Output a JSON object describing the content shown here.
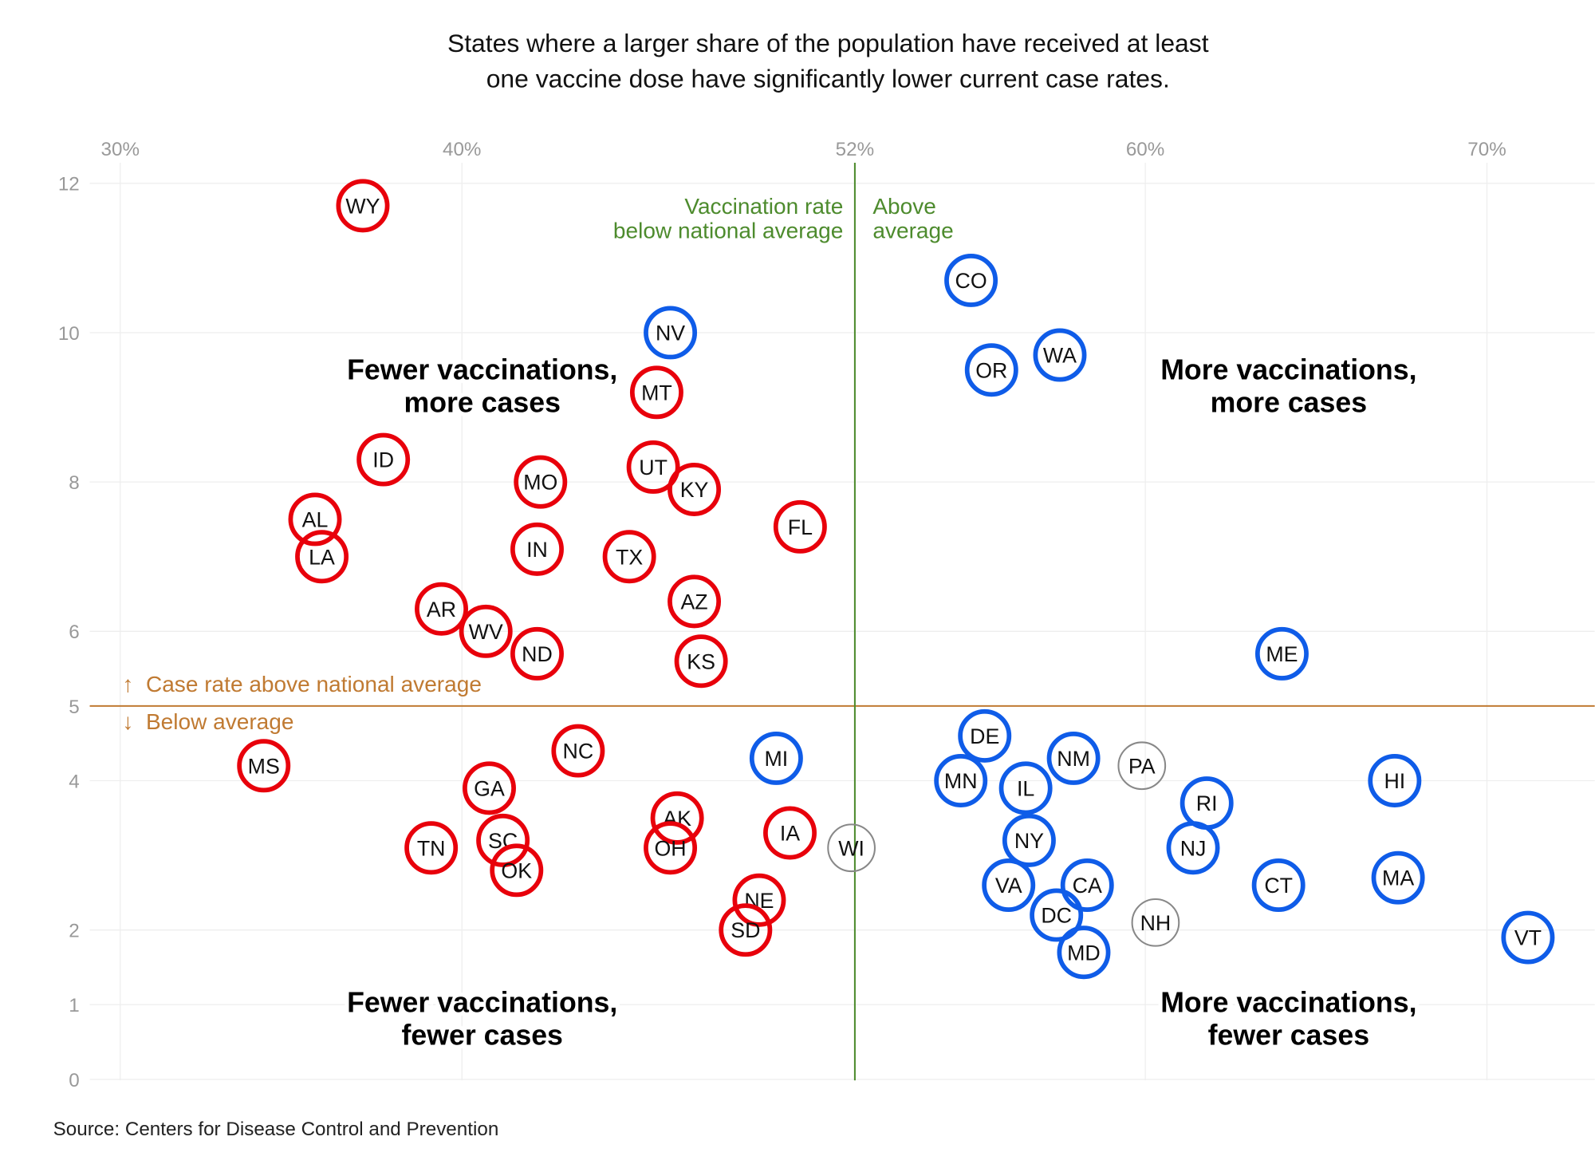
{
  "chart_data": {
    "type": "scatter",
    "title": "States where a larger share of the population have received at least one vaccine dose have significantly lower current case rates.",
    "title_lines": [
      "States where a larger share of the population have received at least",
      "one vaccine dose have significantly lower current case rates."
    ],
    "x_ticks": [
      {
        "value": 30,
        "label": "30%"
      },
      {
        "value": 40,
        "label": "40%"
      },
      {
        "value": 51.5,
        "label": "52%"
      },
      {
        "value": 60,
        "label": "60%"
      },
      {
        "value": 70,
        "label": "70%"
      }
    ],
    "y_ticks": [
      {
        "value": 0,
        "label": "0"
      },
      {
        "value": 1,
        "label": "1"
      },
      {
        "value": 2,
        "label": "2"
      },
      {
        "value": 4,
        "label": "4"
      },
      {
        "value": 5,
        "label": "5"
      },
      {
        "value": 6,
        "label": "6"
      },
      {
        "value": 8,
        "label": "8"
      },
      {
        "value": 10,
        "label": "10"
      },
      {
        "value": 12,
        "label": "12"
      }
    ],
    "xlim": [
      28,
      73
    ],
    "ylim": [
      0,
      12.5
    ],
    "grid": true,
    "reference_lines": {
      "vaccination_avg": 51.5,
      "case_rate_avg": 5
    },
    "annotations": {
      "vacc_below": [
        "Vaccination rate",
        "below national average"
      ],
      "vacc_above": [
        "Above",
        "average"
      ],
      "case_above": "↑  Case rate above national average",
      "case_below": "↓  Below average"
    },
    "quadrant_labels": {
      "top_left": [
        "Fewer vaccinations,",
        "more cases"
      ],
      "top_right": [
        "More vaccinations,",
        "more cases"
      ],
      "bottom_left": [
        "Fewer vaccinations,",
        "fewer cases"
      ],
      "bottom_right": [
        "More vaccinations,",
        "fewer cases"
      ]
    },
    "colors": {
      "low_vaccination": "#e8000b",
      "high_vaccination": "#0f5ce8",
      "near_average": "#888888",
      "vaccination_line": "#4d8b2d",
      "case_line": "#c07a32"
    },
    "points": [
      {
        "state": "WY",
        "x": 37.1,
        "y": 11.7,
        "group": "low"
      },
      {
        "state": "ID",
        "x": 37.7,
        "y": 8.3,
        "group": "low"
      },
      {
        "state": "AL",
        "x": 35.7,
        "y": 7.5,
        "group": "low"
      },
      {
        "state": "LA",
        "x": 35.9,
        "y": 7.0,
        "group": "low"
      },
      {
        "state": "AR",
        "x": 39.4,
        "y": 6.3,
        "group": "low"
      },
      {
        "state": "WV",
        "x": 40.7,
        "y": 6.0,
        "group": "low"
      },
      {
        "state": "ND",
        "x": 42.2,
        "y": 5.7,
        "group": "low"
      },
      {
        "state": "IN",
        "x": 42.2,
        "y": 7.1,
        "group": "low"
      },
      {
        "state": "MO",
        "x": 42.3,
        "y": 8.0,
        "group": "low"
      },
      {
        "state": "TX",
        "x": 44.9,
        "y": 7.0,
        "group": "low"
      },
      {
        "state": "UT",
        "x": 45.6,
        "y": 8.2,
        "group": "low"
      },
      {
        "state": "KY",
        "x": 46.8,
        "y": 7.9,
        "group": "low"
      },
      {
        "state": "MT",
        "x": 45.7,
        "y": 9.2,
        "group": "low"
      },
      {
        "state": "NV",
        "x": 46.1,
        "y": 10.0,
        "group": "high"
      },
      {
        "state": "AZ",
        "x": 46.8,
        "y": 6.4,
        "group": "low"
      },
      {
        "state": "KS",
        "x": 47.0,
        "y": 5.6,
        "group": "low"
      },
      {
        "state": "FL",
        "x": 49.9,
        "y": 7.4,
        "group": "low"
      },
      {
        "state": "CO",
        "x": 54.9,
        "y": 10.7,
        "group": "high"
      },
      {
        "state": "OR",
        "x": 55.5,
        "y": 9.5,
        "group": "high"
      },
      {
        "state": "WA",
        "x": 57.5,
        "y": 9.7,
        "group": "high"
      },
      {
        "state": "ME",
        "x": 64.0,
        "y": 5.7,
        "group": "high"
      },
      {
        "state": "MS",
        "x": 34.2,
        "y": 4.2,
        "group": "low"
      },
      {
        "state": "GA",
        "x": 40.8,
        "y": 3.9,
        "group": "low"
      },
      {
        "state": "NC",
        "x": 43.4,
        "y": 4.4,
        "group": "low"
      },
      {
        "state": "MI",
        "x": 49.2,
        "y": 4.3,
        "group": "high"
      },
      {
        "state": "TN",
        "x": 39.1,
        "y": 3.1,
        "group": "low"
      },
      {
        "state": "SC",
        "x": 41.2,
        "y": 3.2,
        "group": "low"
      },
      {
        "state": "OK",
        "x": 41.6,
        "y": 2.8,
        "group": "low"
      },
      {
        "state": "AK",
        "x": 46.3,
        "y": 3.5,
        "group": "low"
      },
      {
        "state": "OH",
        "x": 46.1,
        "y": 3.1,
        "group": "low"
      },
      {
        "state": "IA",
        "x": 49.6,
        "y": 3.3,
        "group": "low"
      },
      {
        "state": "WI",
        "x": 51.4,
        "y": 3.1,
        "group": "neutral"
      },
      {
        "state": "NE",
        "x": 48.7,
        "y": 2.4,
        "group": "low"
      },
      {
        "state": "SD",
        "x": 48.3,
        "y": 2.0,
        "group": "low"
      },
      {
        "state": "DE",
        "x": 55.3,
        "y": 4.6,
        "group": "high"
      },
      {
        "state": "MN",
        "x": 54.6,
        "y": 4.0,
        "group": "high"
      },
      {
        "state": "IL",
        "x": 56.5,
        "y": 3.9,
        "group": "high"
      },
      {
        "state": "NM",
        "x": 57.9,
        "y": 4.3,
        "group": "high"
      },
      {
        "state": "PA",
        "x": 59.9,
        "y": 4.2,
        "group": "neutral"
      },
      {
        "state": "HI",
        "x": 67.3,
        "y": 4.0,
        "group": "high"
      },
      {
        "state": "RI",
        "x": 61.8,
        "y": 3.7,
        "group": "high"
      },
      {
        "state": "NJ",
        "x": 61.4,
        "y": 3.1,
        "group": "high"
      },
      {
        "state": "NY",
        "x": 56.6,
        "y": 3.2,
        "group": "high"
      },
      {
        "state": "VA",
        "x": 56.0,
        "y": 2.6,
        "group": "high"
      },
      {
        "state": "CA",
        "x": 58.3,
        "y": 2.6,
        "group": "high"
      },
      {
        "state": "DC",
        "x": 57.4,
        "y": 2.2,
        "group": "high"
      },
      {
        "state": "MD",
        "x": 58.2,
        "y": 1.7,
        "group": "high"
      },
      {
        "state": "NH",
        "x": 60.3,
        "y": 2.1,
        "group": "neutral"
      },
      {
        "state": "CT",
        "x": 63.9,
        "y": 2.6,
        "group": "high"
      },
      {
        "state": "MA",
        "x": 67.4,
        "y": 2.7,
        "group": "high"
      },
      {
        "state": "VT",
        "x": 71.2,
        "y": 1.9,
        "group": "high"
      }
    ]
  },
  "source": "Source: Centers for Disease Control and Prevention"
}
